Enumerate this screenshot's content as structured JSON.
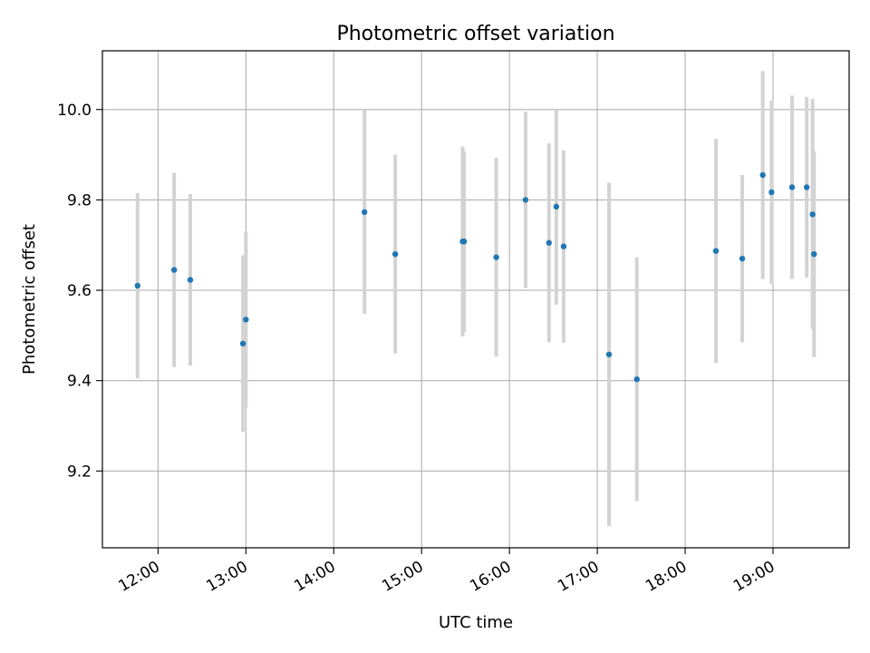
{
  "chart_data": {
    "type": "scatter",
    "title": "Photometric offset variation",
    "xlabel": "UTC time",
    "ylabel": "Photometric offset",
    "xlim": [
      "11:22",
      "19:52"
    ],
    "ylim": [
      9.03,
      10.13
    ],
    "x_ticks": [
      "12:00",
      "13:00",
      "14:00",
      "15:00",
      "16:00",
      "17:00",
      "18:00",
      "19:00"
    ],
    "y_ticks": [
      9.2,
      9.4,
      9.6,
      9.8,
      10.0
    ],
    "y_tick_labels": [
      "9.2",
      "9.4",
      "9.6",
      "9.8",
      "10.0"
    ],
    "grid": true,
    "colors": {
      "point": "#1f77b4",
      "errorbar": "#d3d3d3",
      "grid": "#b0b0b0"
    },
    "series": [
      {
        "points": [
          {
            "x": "11:46",
            "y": 9.61,
            "err": 0.205
          },
          {
            "x": "12:11",
            "y": 9.645,
            "err": 0.215
          },
          {
            "x": "12:22",
            "y": 9.623,
            "err": 0.19
          },
          {
            "x": "12:58",
            "y": 9.482,
            "err": 0.195
          },
          {
            "x": "13:00",
            "y": 9.535,
            "err": 0.195
          },
          {
            "x": "14:21",
            "y": 9.773,
            "err": 0.225
          },
          {
            "x": "14:42",
            "y": 9.68,
            "err": 0.22
          },
          {
            "x": "15:28",
            "y": 9.708,
            "err": 0.21
          },
          {
            "x": "15:29",
            "y": 9.708,
            "err": 0.2
          },
          {
            "x": "15:51",
            "y": 9.673,
            "err": 0.22
          },
          {
            "x": "16:11",
            "y": 9.8,
            "err": 0.195
          },
          {
            "x": "16:27",
            "y": 9.705,
            "err": 0.22
          },
          {
            "x": "16:32",
            "y": 9.785,
            "err": 0.217
          },
          {
            "x": "16:37",
            "y": 9.697,
            "err": 0.213
          },
          {
            "x": "17:08",
            "y": 9.458,
            "err": 0.38
          },
          {
            "x": "17:27",
            "y": 9.403,
            "err": 0.27
          },
          {
            "x": "18:21",
            "y": 9.687,
            "err": 0.248
          },
          {
            "x": "18:39",
            "y": 9.67,
            "err": 0.185
          },
          {
            "x": "18:53",
            "y": 9.855,
            "err": 0.23
          },
          {
            "x": "18:59",
            "y": 9.817,
            "err": 0.203
          },
          {
            "x": "19:13",
            "y": 9.828,
            "err": 0.203
          },
          {
            "x": "19:23",
            "y": 9.828,
            "err": 0.2
          },
          {
            "x": "19:27",
            "y": 9.768,
            "err": 0.255
          },
          {
            "x": "19:28",
            "y": 9.68,
            "err": 0.228
          }
        ]
      }
    ]
  }
}
